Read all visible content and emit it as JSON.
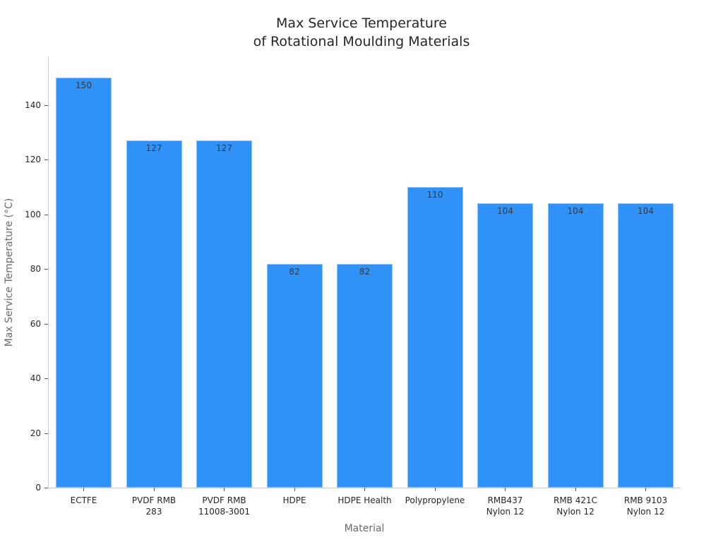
{
  "chart_data": {
    "type": "bar",
    "title": "Max Service Temperature\nof Rotational Moulding Materials",
    "title_lines": [
      "Max Service Temperature",
      "of Rotational Moulding Materials"
    ],
    "xlabel": "Material",
    "ylabel": "Max Service Temperature (°C)",
    "categories": [
      "ECTFE",
      "PVDF RMB 283",
      "PVDF RMB 11008-3001",
      "HDPE",
      "HDPE Health",
      "Polypropylene",
      "RMB437 Nylon 12",
      "RMB 421C Nylon 12",
      "RMB 9103 Nylon 12"
    ],
    "category_labels": [
      "ECTFE",
      "PVDF RMB\n283",
      "PVDF RMB\n11008-3001",
      "HDPE",
      "HDPE Health",
      "Polypropylene",
      "RMB437\nNylon 12",
      "RMB 421C\nNylon 12",
      "RMB 9103\nNylon 12"
    ],
    "values": [
      150,
      127,
      127,
      82,
      82,
      110,
      104,
      104,
      104
    ],
    "value_labels": [
      "150",
      "127",
      "127",
      "82",
      "82",
      "110",
      "104",
      "104",
      "104"
    ],
    "ylim": [
      0,
      157
    ],
    "yticks": [
      0,
      20,
      40,
      60,
      80,
      100,
      120,
      140
    ],
    "grid": false,
    "legend": null,
    "bar_color": "#3091f7"
  }
}
